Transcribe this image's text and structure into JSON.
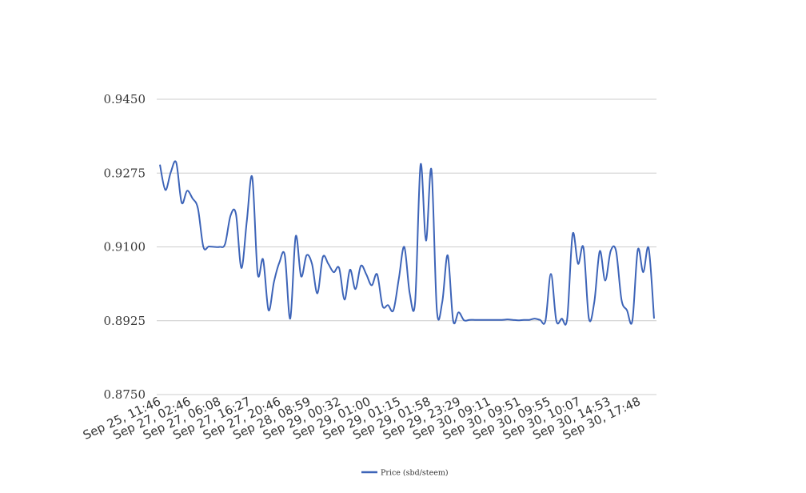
{
  "chart_data": {
    "type": "line",
    "title": "",
    "xlabel": "",
    "ylabel": "",
    "ylim": [
      0.875,
      0.945
    ],
    "yticks": [
      "0.9450",
      "0.9275",
      "0.9100",
      "0.8925",
      "0.8750"
    ],
    "ytick_values": [
      0.945,
      0.9275,
      0.91,
      0.8925,
      0.875
    ],
    "grid": true,
    "legend_position": "bottom-center",
    "colors": {
      "line": "#3d64b8",
      "grid": "#cccccc"
    },
    "x_tick_labels": [
      "Sep 25, 11:46",
      "Sep 27, 02:46",
      "Sep 27, 06:08",
      "Sep 27, 16:27",
      "Sep 27, 20:46",
      "Sep 28, 08:59",
      "Sep 29, 00:32",
      "Sep 29, 01:00",
      "Sep 29, 01:15",
      "Sep 29, 01:58",
      "Sep 29, 23:29",
      "Sep 30, 09:11",
      "Sep 30, 09:51",
      "Sep 30, 09:55",
      "Sep 30, 10:07",
      "Sep 30, 14:53",
      "Sep 30, 17:48"
    ],
    "series": [
      {
        "name": "Price (sbd/steem)",
        "values": [
          0.9295,
          0.9235,
          0.9277,
          0.93,
          0.9205,
          0.9233,
          0.9215,
          0.9191,
          0.91,
          0.9101,
          0.91,
          0.91,
          0.9107,
          0.9174,
          0.9178,
          0.905,
          0.9161,
          0.9265,
          0.9037,
          0.907,
          0.895,
          0.9017,
          0.9063,
          0.908,
          0.893,
          0.9125,
          0.903,
          0.908,
          0.906,
          0.899,
          0.9076,
          0.906,
          0.904,
          0.905,
          0.8975,
          0.9046,
          0.9,
          0.9055,
          0.9035,
          0.9009,
          0.9035,
          0.896,
          0.8962,
          0.895,
          0.9025,
          0.91,
          0.899,
          0.897,
          0.9295,
          0.9115,
          0.9283,
          0.895,
          0.897,
          0.908,
          0.8925,
          0.8945,
          0.8926,
          0.8927,
          0.8927,
          0.8927,
          0.8927,
          0.8927,
          0.8927,
          0.8927,
          0.8928,
          0.8927,
          0.8926,
          0.8927,
          0.8927,
          0.893,
          0.8927,
          0.8925,
          0.9036,
          0.8925,
          0.893,
          0.893,
          0.913,
          0.906,
          0.9098,
          0.893,
          0.897,
          0.909,
          0.902,
          0.909,
          0.909,
          0.8975,
          0.895,
          0.8925,
          0.9093,
          0.904,
          0.9097,
          0.893
        ]
      }
    ]
  },
  "legend": {
    "label": "Price (sbd/steem)"
  }
}
